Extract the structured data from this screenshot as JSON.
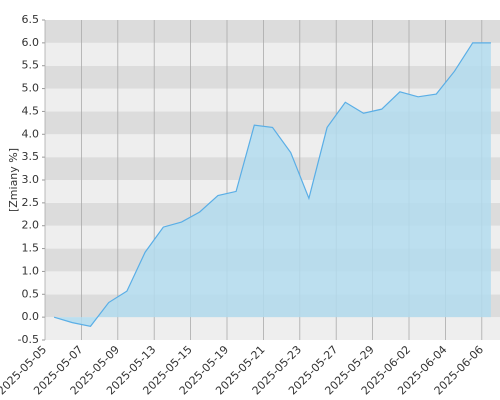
{
  "chart_data": {
    "type": "area",
    "y_label": "[Zmiany %]",
    "categories": [
      "2025-05-05",
      null,
      "2025-05-07",
      null,
      "2025-05-09",
      null,
      "2025-05-13",
      null,
      "2025-05-15",
      null,
      "2025-05-19",
      null,
      "2025-05-21",
      null,
      "2025-05-23",
      null,
      "2025-05-27",
      null,
      "2025-05-29",
      null,
      "2025-06-02",
      null,
      "2025-06-04",
      null,
      "2025-06-06"
    ],
    "values": [
      0.0,
      -0.12,
      -0.2,
      0.32,
      0.57,
      1.42,
      1.97,
      2.08,
      2.3,
      2.66,
      2.75,
      4.2,
      4.15,
      3.6,
      2.6,
      4.15,
      4.7,
      4.46,
      4.55,
      4.93,
      4.82,
      4.88,
      5.38,
      6.0,
      6.0
    ],
    "color": "#5aaee6",
    "fill": "#b3dcef",
    "ylim": [
      -0.5,
      6.5
    ],
    "yticks": [
      -0.5,
      {
        "value": 0,
        "label": "0.0"
      },
      0.5,
      {
        "value": 1,
        "label": "1.0"
      },
      1.5,
      {
        "value": 2,
        "label": "2.0"
      },
      2.5,
      {
        "value": 3,
        "label": "3.0"
      },
      3.5,
      {
        "value": 4,
        "label": "4.0"
      },
      4.5,
      {
        "value": 5,
        "label": "5.0"
      },
      5.5,
      {
        "value": 6,
        "label": "6.0"
      },
      6.5
    ],
    "grid": true
  }
}
